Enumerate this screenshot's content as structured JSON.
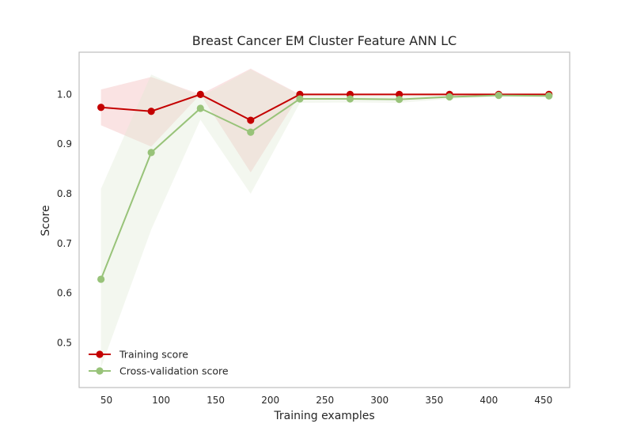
{
  "chart_data": {
    "type": "line",
    "title": "Breast Cancer EM Cluster Feature ANN LC",
    "xlabel": "Training examples",
    "ylabel": "Score",
    "xlim": [
      25,
      474
    ],
    "ylim": [
      0.41,
      1.085
    ],
    "xticks": [
      50,
      100,
      150,
      200,
      250,
      300,
      350,
      400,
      450
    ],
    "yticks": [
      0.5,
      0.6,
      0.7,
      0.8,
      0.9,
      1.0
    ],
    "ytick_labels": [
      "0.5",
      "0.6",
      "0.7",
      "0.8",
      "0.9",
      "1.0"
    ],
    "grid": false,
    "legend_position": "lower-left",
    "x": [
      45,
      91,
      136,
      182,
      227,
      273,
      318,
      364,
      409,
      455
    ],
    "series": [
      {
        "name": "Training score",
        "color": "#c40000",
        "band_color": "#f5c0c0",
        "mean": [
          0.974,
          0.966,
          1.0,
          0.948,
          1.0,
          1.0,
          1.0,
          1.0,
          1.0,
          1.0
        ],
        "upper": [
          1.01,
          1.035,
          1.0,
          1.052,
          1.0,
          1.0,
          1.0,
          1.0,
          1.0,
          1.0
        ],
        "lower": [
          0.938,
          0.895,
          1.0,
          0.843,
          1.0,
          1.0,
          1.0,
          1.0,
          1.0,
          1.0
        ]
      },
      {
        "name": "Cross-validation score",
        "color": "#98c379",
        "band_color": "#dde9d0",
        "mean": [
          0.628,
          0.883,
          0.972,
          0.924,
          0.991,
          0.991,
          0.99,
          0.995,
          0.998,
          0.997
        ],
        "upper": [
          0.81,
          1.04,
          0.995,
          1.05,
          0.999,
          0.998,
          0.997,
          0.999,
          1.0,
          1.0
        ],
        "lower": [
          0.45,
          0.728,
          0.949,
          0.8,
          0.983,
          0.984,
          0.983,
          0.991,
          0.996,
          0.994
        ]
      }
    ]
  }
}
